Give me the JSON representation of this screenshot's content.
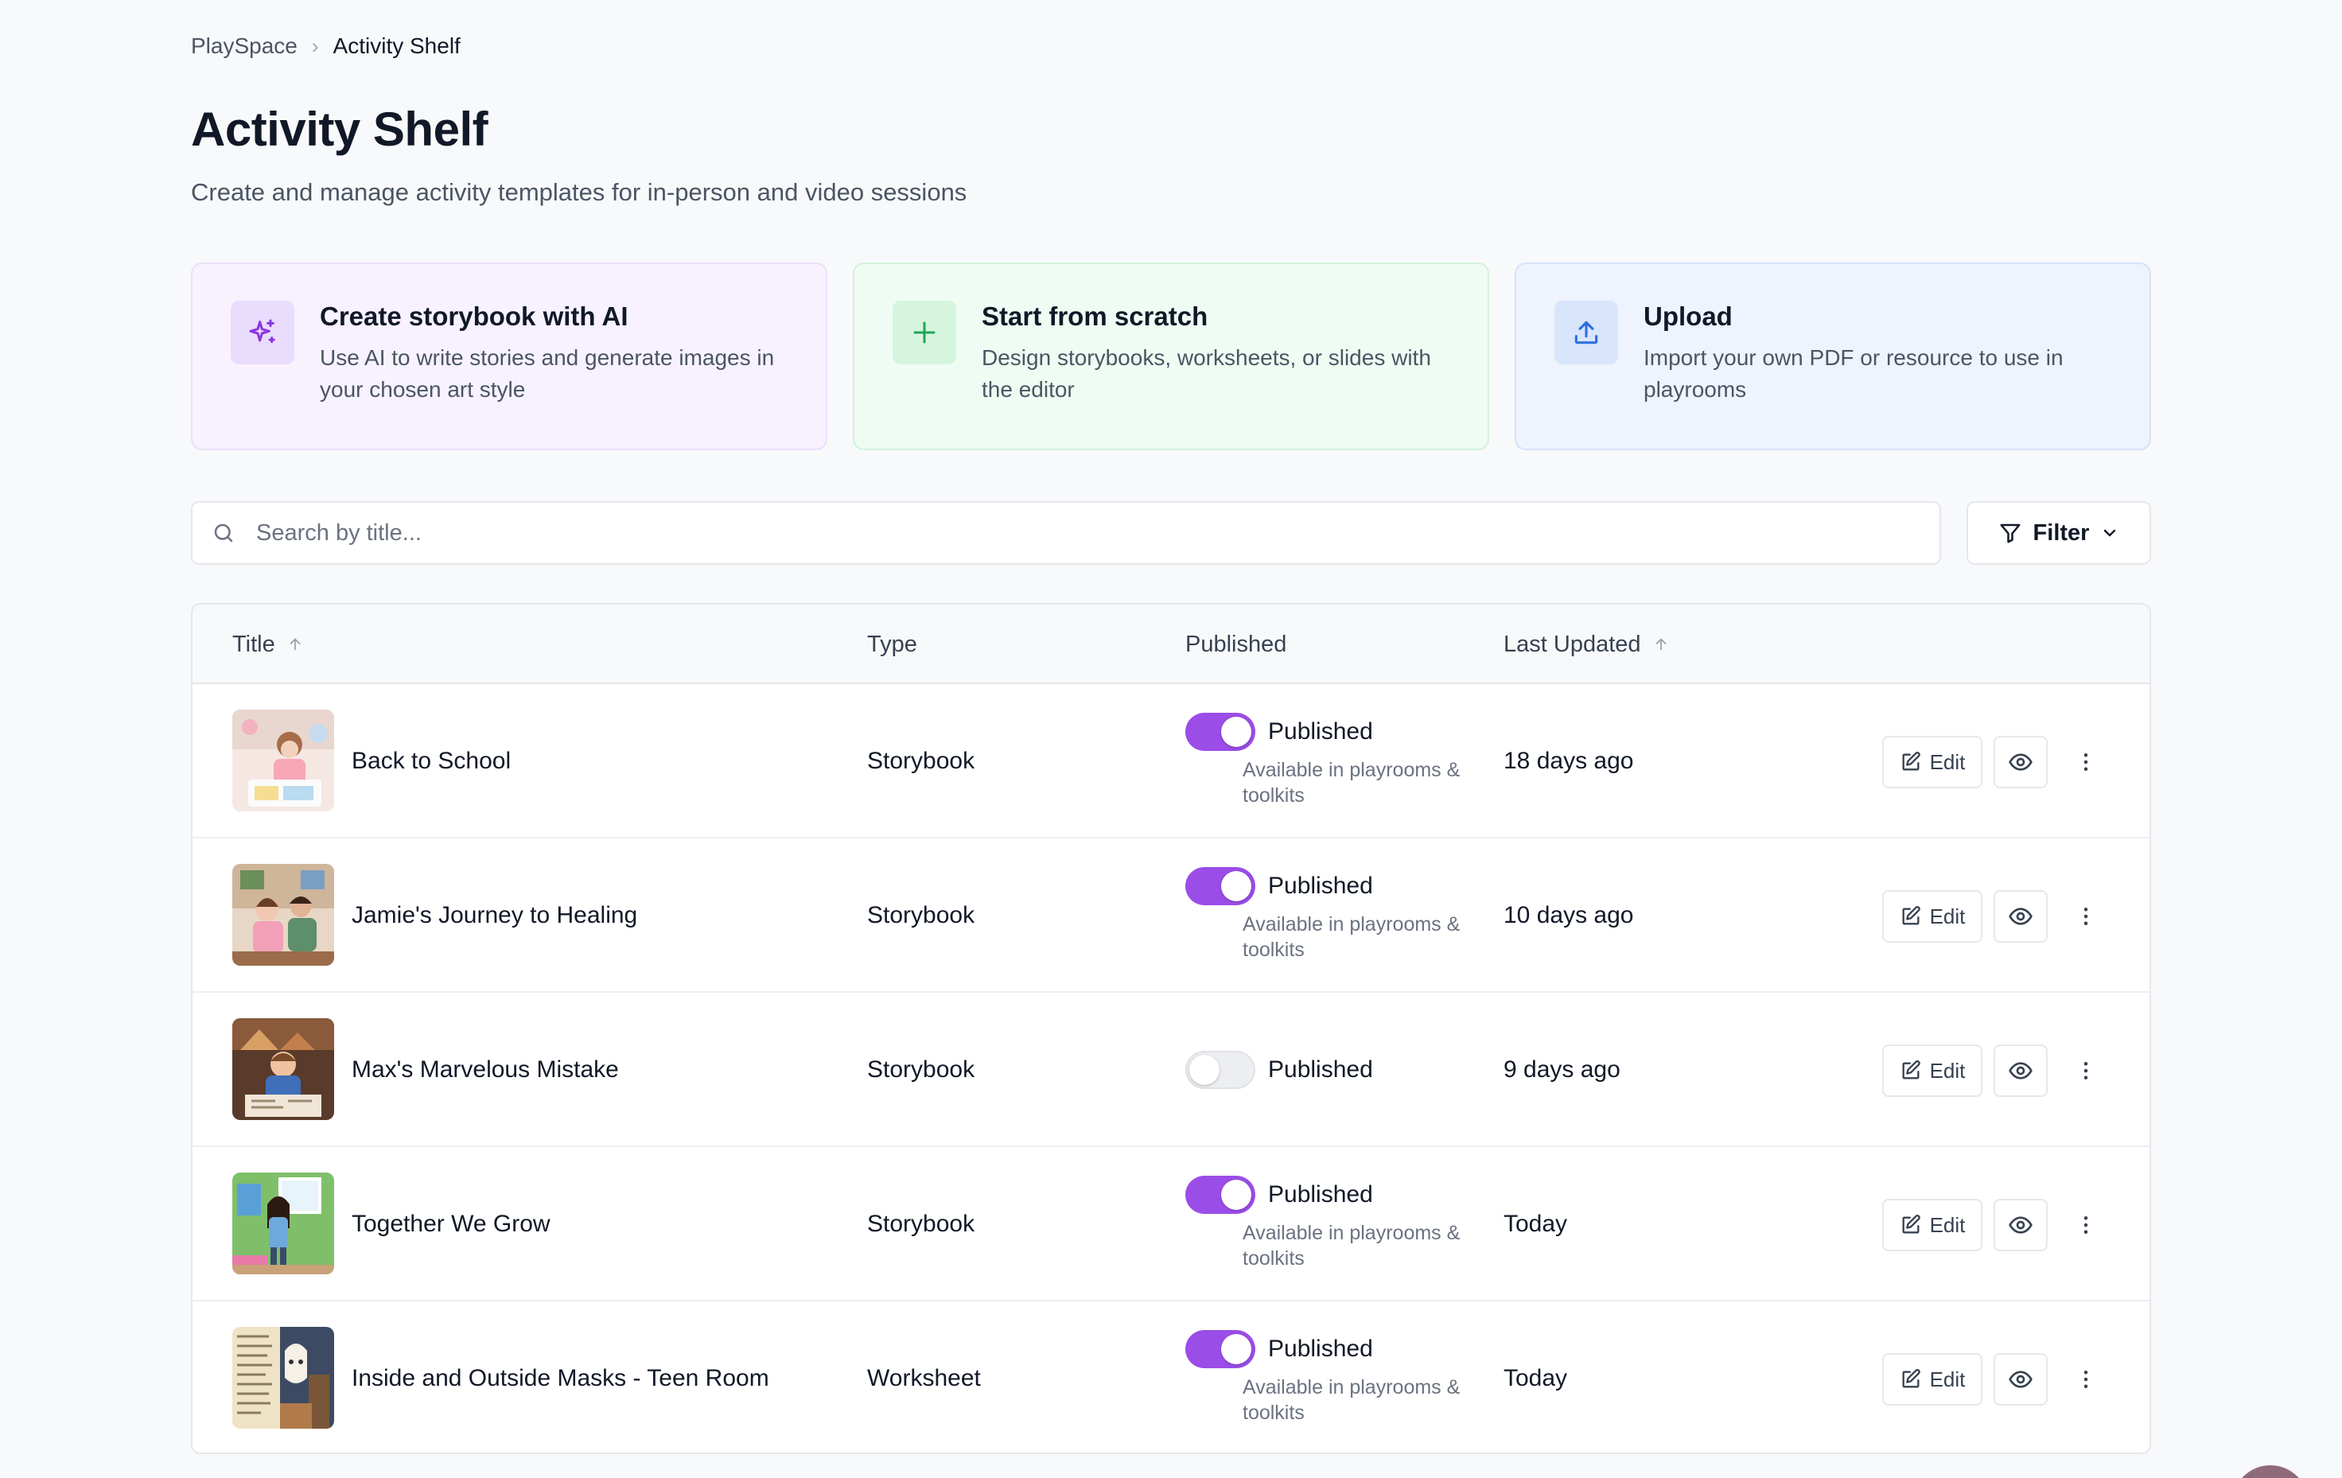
{
  "breadcrumb": {
    "root": "PlaySpace",
    "separator": "›",
    "current": "Activity Shelf"
  },
  "page": {
    "title": "Activity Shelf",
    "subtitle": "Create and manage activity templates for in-person and video sessions"
  },
  "cards": {
    "ai": {
      "title": "Create storybook with AI",
      "description": "Use AI to write stories and generate images in your chosen art style",
      "icon": "sparkles-icon"
    },
    "scratch": {
      "title": "Start from scratch",
      "description": "Design storybooks, worksheets, or slides with the editor",
      "icon": "plus-icon"
    },
    "upload": {
      "title": "Upload",
      "description": "Import your own PDF or resource to use in playrooms",
      "icon": "upload-icon"
    }
  },
  "search": {
    "placeholder": "Search by title...",
    "value": ""
  },
  "filter": {
    "label": "Filter"
  },
  "table": {
    "headers": {
      "title": "Title",
      "type": "Type",
      "published": "Published",
      "updated": "Last Updated"
    },
    "actions": {
      "edit_label": "Edit"
    },
    "rows": [
      {
        "title": "Back to School",
        "type": "Storybook",
        "published": true,
        "published_label": "Published",
        "note": "Available in playrooms & toolkits",
        "updated": "18 days ago"
      },
      {
        "title": "Jamie's Journey to Healing",
        "type": "Storybook",
        "published": true,
        "published_label": "Published",
        "note": "Available in playrooms & toolkits",
        "updated": "10 days ago"
      },
      {
        "title": "Max's Marvelous Mistake",
        "type": "Storybook",
        "published": false,
        "published_label": "Published",
        "note": "",
        "updated": "9 days ago"
      },
      {
        "title": "Together We Grow",
        "type": "Storybook",
        "published": true,
        "published_label": "Published",
        "note": "Available in playrooms & toolkits",
        "updated": "Today"
      },
      {
        "title": "Inside and Outside Masks - Teen Room",
        "type": "Worksheet",
        "published": true,
        "published_label": "Published",
        "note": "Available in playrooms & toolkits",
        "updated": "Today"
      }
    ]
  },
  "colors": {
    "accent": "#9b4de8",
    "background": "#f8f9fb",
    "ai_card": "#f7f2fe",
    "scratch_card": "#effcf3",
    "upload_card": "#eef3fd"
  }
}
